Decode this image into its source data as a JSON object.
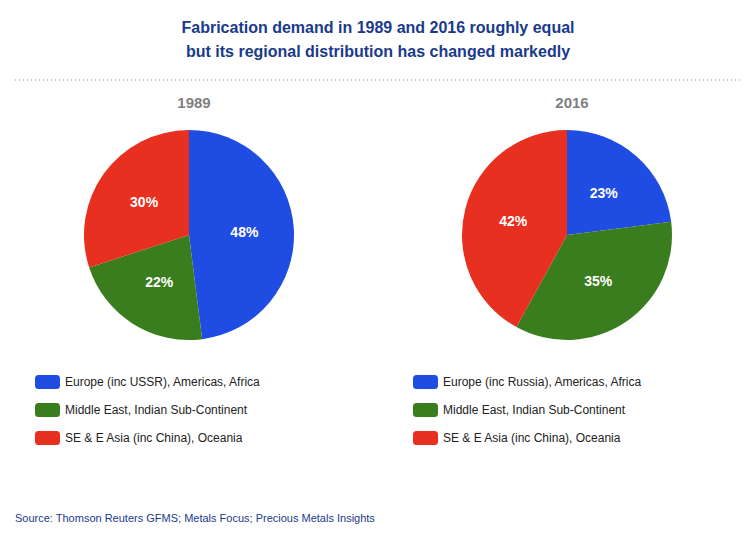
{
  "chart_data": [
    {
      "type": "pie",
      "title": "Fabrication demand in 1989 and 2016 roughly equal\nbut its regional distribution has changed markedly",
      "subtitle": "1989",
      "categories": [
        "Europe (inc USSR), Americas, Africa",
        "Middle East, Indian Sub-Continent",
        "SE & E Asia (inc China), Oceania"
      ],
      "values": [
        48,
        22,
        30
      ],
      "value_labels": [
        "48%",
        "22%",
        "30%"
      ],
      "colors": [
        "#1f4de4",
        "#3a7d1e",
        "#e83020"
      ],
      "data_labels": true,
      "legend": "bottom",
      "annotations": [
        "Source: Thomson Reuters GFMS; Metals Focus; Precious Metals Insights"
      ]
    },
    {
      "type": "pie",
      "subtitle": "2016",
      "categories": [
        "Europe (inc Russia), Americas, Africa",
        "Middle East, Indian Sub-Continent",
        "SE & E Asia (inc China), Oceania"
      ],
      "values": [
        23,
        35,
        42
      ],
      "value_labels": [
        "23%",
        "35%",
        "42%"
      ],
      "colors": [
        "#1f4de4",
        "#3a7d1e",
        "#e83020"
      ],
      "data_labels": true,
      "legend": "bottom"
    }
  ]
}
